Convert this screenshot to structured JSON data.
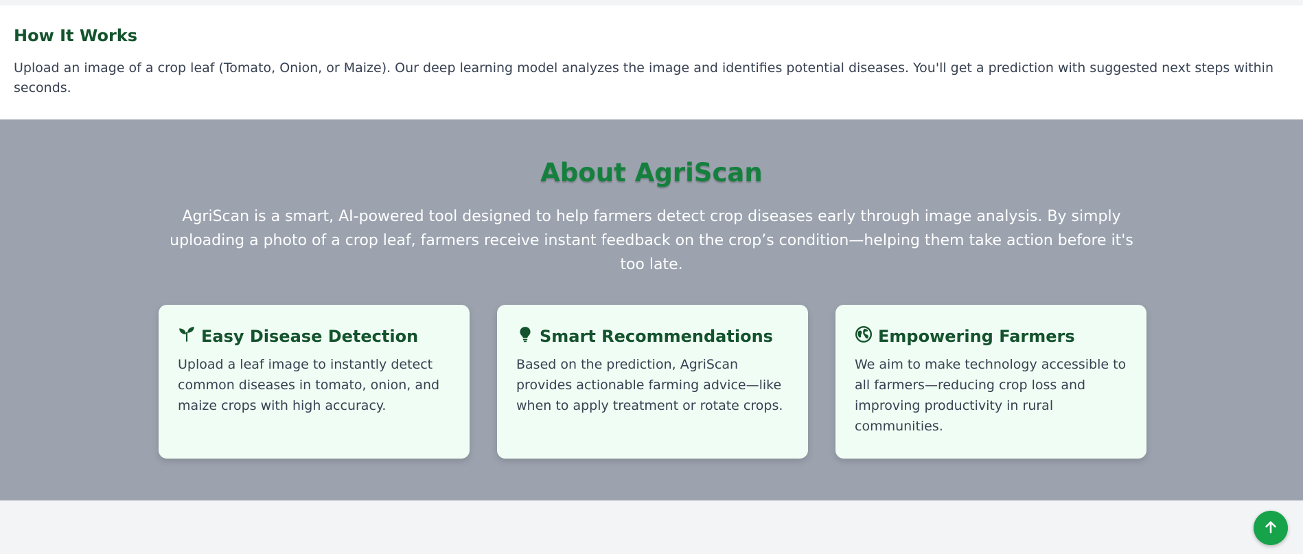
{
  "how_it_works": {
    "title": "How It Works",
    "text": "Upload an image of a crop leaf (Tomato, Onion, or Maize). Our deep learning model analyzes the image and identifies potential diseases. You'll get a prediction with suggested next steps within seconds."
  },
  "about": {
    "title": "About AgriScan",
    "intro": "AgriScan is a smart, AI-powered tool designed to help farmers detect crop diseases early through image analysis. By simply uploading a photo of a crop leaf, farmers receive instant feedback on the crop’s condition—helping them take action before it's too late.",
    "cards": [
      {
        "icon": "seedling-icon",
        "title": "Easy Disease Detection",
        "text": "Upload a leaf image to instantly detect common diseases in tomato, onion, and maize crops with high accuracy."
      },
      {
        "icon": "lightbulb-icon",
        "title": "Smart Recommendations",
        "text": "Based on the prediction, AgriScan provides actionable farming advice—like when to apply treatment or rotate crops."
      },
      {
        "icon": "globe-icon",
        "title": "Empowering Farmers",
        "text": "We aim to make technology accessible to all farmers—reducing crop loss and improving productivity in rural communities."
      }
    ]
  },
  "scroll_top_button": {
    "icon": "arrow-up-icon"
  },
  "colors": {
    "heading_green": "#14532d",
    "accent_green": "#15803d",
    "button_green": "#16a34a",
    "about_bg": "#9ca3af",
    "card_bg": "#f0fdf4"
  }
}
